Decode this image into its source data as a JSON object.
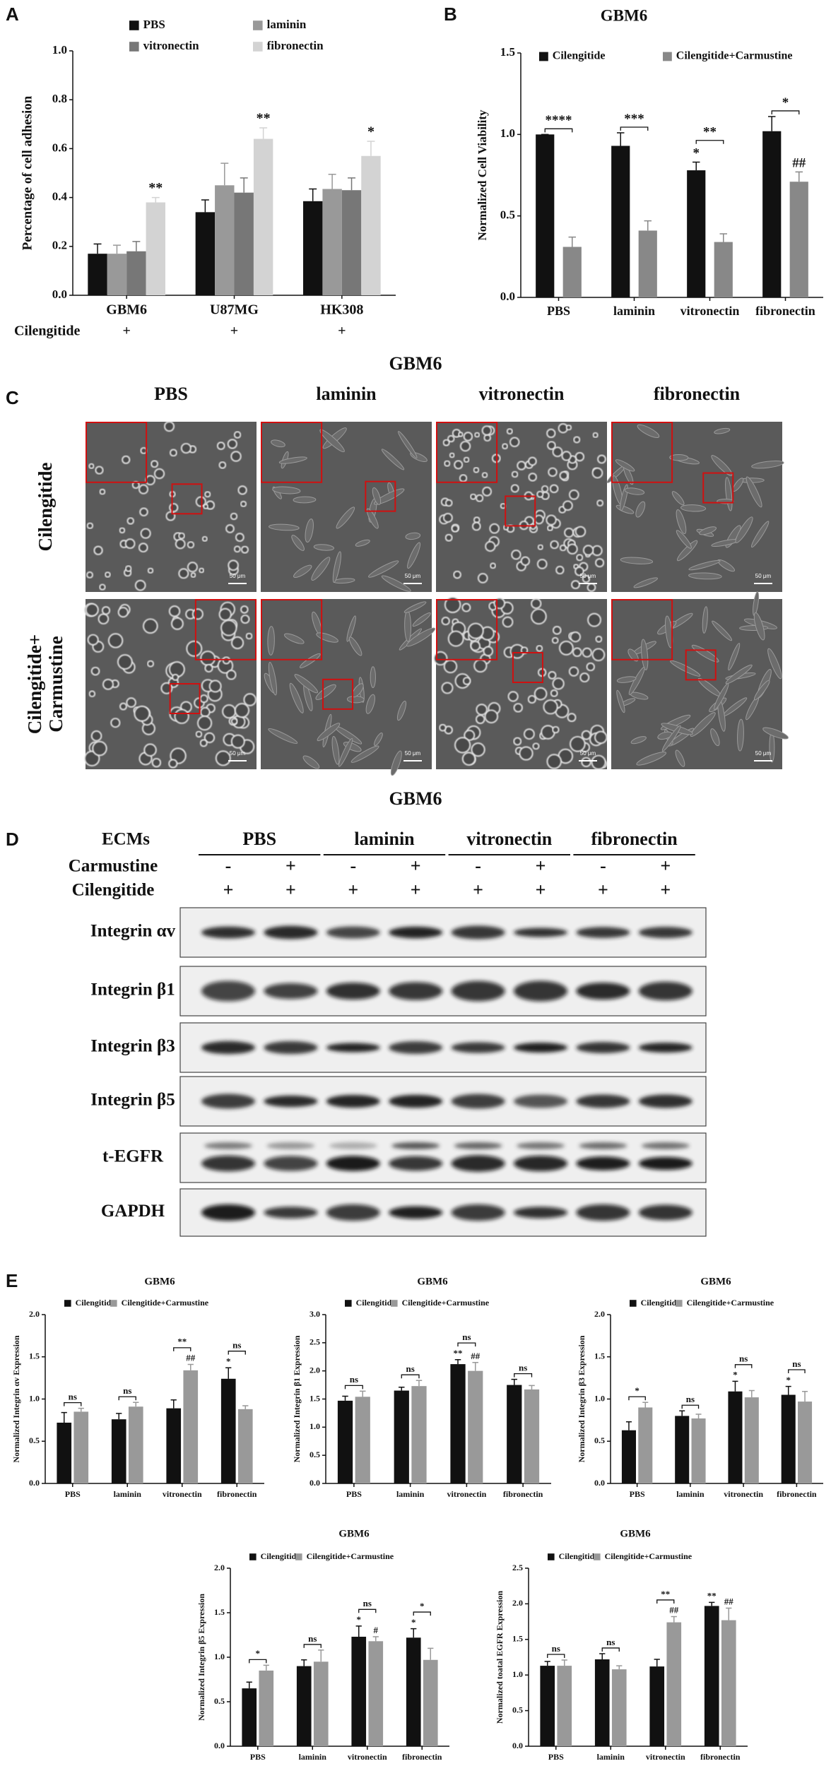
{
  "panel_labels": [
    "A",
    "B",
    "C",
    "D",
    "E"
  ],
  "chart_data": [
    {
      "type": "bar",
      "ylabel": "Percentage of cell adhesion",
      "categories": [
        "GBM6",
        "U87MG",
        "HK308"
      ],
      "series": [
        {
          "name": "PBS",
          "color": "#111111",
          "values": [
            0.17,
            0.34,
            0.385
          ],
          "errors": [
            0.04,
            0.05,
            0.05
          ]
        },
        {
          "name": "laminin",
          "color": "#999999",
          "values": [
            0.17,
            0.45,
            0.435
          ],
          "errors": [
            0.035,
            0.09,
            0.06
          ]
        },
        {
          "name": "vitronectin",
          "color": "#777777",
          "values": [
            0.18,
            0.42,
            0.43
          ],
          "errors": [
            0.04,
            0.06,
            0.05
          ]
        },
        {
          "name": "fibronectin",
          "color": "#d3d3d3",
          "values": [
            0.38,
            0.64,
            0.57
          ],
          "errors": [
            0.02,
            0.045,
            0.06
          ],
          "notes": [
            "**",
            "**",
            "*"
          ]
        }
      ],
      "ylim": [
        0,
        1
      ],
      "yticks": [
        {
          "value": 0,
          "label": "0.0"
        },
        0.2,
        0.4,
        0.6,
        0.8,
        {
          "value": 1,
          "label": "1.0"
        }
      ],
      "row_label": "Cilengitide",
      "row_values": [
        "+",
        "+",
        "+"
      ]
    },
    {
      "type": "bar",
      "title": "GBM6",
      "ylabel": "Normalized Cell Viability",
      "categories": [
        "PBS",
        "laminin",
        "vitronectin",
        "fibronectin"
      ],
      "series": [
        {
          "name": "Cilengitide",
          "color": "#111111",
          "values": [
            1.0,
            0.93,
            0.78,
            1.02
          ],
          "errors": [
            0,
            0.08,
            0.05,
            0.09
          ],
          "notes": [
            null,
            null,
            "*",
            null
          ]
        },
        {
          "name": "Cilengitide+Carmustine",
          "color": "#888888",
          "values": [
            0.31,
            0.41,
            0.34,
            0.71
          ],
          "errors": [
            0.06,
            0.06,
            0.05,
            0.06
          ],
          "notes": [
            null,
            null,
            null,
            "##"
          ]
        }
      ],
      "brackets": [
        "****",
        "***",
        "**",
        "*"
      ],
      "ylim": [
        0,
        1.5
      ],
      "yticks": [
        {
          "value": 0,
          "label": "0.0"
        },
        0.5,
        {
          "value": 1,
          "label": "1.0"
        },
        1.5
      ]
    },
    {
      "type": "bar",
      "title": "GBM6",
      "ylabel": "Normalized Integrin αv Expression",
      "categories": [
        "PBS",
        "laminin",
        "vitronectin",
        "fibronectin"
      ],
      "series": [
        {
          "name": "Cilengitide",
          "color": "#111111",
          "values": [
            0.72,
            0.76,
            0.89,
            1.24
          ],
          "errors": [
            0.12,
            0.07,
            0.1,
            0.13
          ],
          "notes": [
            null,
            null,
            null,
            "*"
          ]
        },
        {
          "name": "Cilengitide+Carmustine",
          "color": "#999999",
          "values": [
            0.85,
            0.91,
            1.34,
            0.88
          ],
          "errors": [
            0.04,
            0.05,
            0.07,
            0.04
          ],
          "notes": [
            null,
            null,
            "##",
            null
          ]
        }
      ],
      "brackets": [
        "ns",
        "ns",
        "**",
        "ns"
      ],
      "ylim": [
        0,
        2
      ],
      "yticks": [
        {
          "value": 0,
          "label": "0.0"
        },
        0.5,
        {
          "value": 1,
          "label": "1.0"
        },
        1.5,
        {
          "value": 2,
          "label": "2.0"
        }
      ]
    },
    {
      "type": "bar",
      "title": "GBM6",
      "ylabel": "Normalized Integrin β1 Expression",
      "categories": [
        "PBS",
        "laminin",
        "vitronectin",
        "fibronectin"
      ],
      "series": [
        {
          "name": "Cilengitide",
          "color": "#111111",
          "values": [
            1.47,
            1.65,
            2.12,
            1.75
          ],
          "errors": [
            0.08,
            0.06,
            0.08,
            0.1
          ],
          "notes": [
            null,
            null,
            "**",
            null
          ]
        },
        {
          "name": "Cilengitide+Carmustine",
          "color": "#999999",
          "values": [
            1.54,
            1.73,
            2.0,
            1.67
          ],
          "errors": [
            0.1,
            0.1,
            0.15,
            0.07
          ],
          "notes": [
            null,
            null,
            "##",
            null
          ]
        }
      ],
      "brackets": [
        "ns",
        "ns",
        "ns",
        "ns"
      ],
      "ylim": [
        0,
        3
      ],
      "yticks": [
        {
          "value": 0,
          "label": "0.0"
        },
        0.5,
        {
          "value": 1,
          "label": "1.0"
        },
        1.5,
        {
          "value": 2,
          "label": "2.0"
        },
        2.5,
        {
          "value": 3,
          "label": "3.0"
        }
      ]
    },
    {
      "type": "bar",
      "title": "GBM6",
      "ylabel": "Normalized Integrin β3 Expression",
      "categories": [
        "PBS",
        "laminin",
        "vitronectin",
        "fibronectin"
      ],
      "series": [
        {
          "name": "Cilengitide",
          "color": "#111111",
          "values": [
            0.63,
            0.8,
            1.09,
            1.05
          ],
          "errors": [
            0.1,
            0.06,
            0.12,
            0.1
          ],
          "notes": [
            null,
            null,
            "*",
            "*"
          ]
        },
        {
          "name": "Cilengitide+Carmustine",
          "color": "#999999",
          "values": [
            0.9,
            0.77,
            1.02,
            0.97
          ],
          "errors": [
            0.06,
            0.05,
            0.08,
            0.12
          ]
        }
      ],
      "brackets": [
        "*",
        "ns",
        "ns",
        "ns"
      ],
      "ylim": [
        0,
        2
      ],
      "yticks": [
        {
          "value": 0,
          "label": "0.0"
        },
        0.5,
        {
          "value": 1,
          "label": "1.0"
        },
        1.5,
        {
          "value": 2,
          "label": "2.0"
        }
      ]
    },
    {
      "type": "bar",
      "title": "GBM6",
      "ylabel": "Normalized Integrin β5 Expression",
      "categories": [
        "PBS",
        "laminin",
        "vitronectin",
        "fibronectin"
      ],
      "series": [
        {
          "name": "Cilengitide",
          "color": "#111111",
          "values": [
            0.65,
            0.9,
            1.23,
            1.22
          ],
          "errors": [
            0.07,
            0.07,
            0.12,
            0.1
          ],
          "notes": [
            null,
            null,
            "*",
            "*"
          ]
        },
        {
          "name": "Cilengitide+Carmustine",
          "color": "#999999",
          "values": [
            0.85,
            0.95,
            1.18,
            0.97
          ],
          "errors": [
            0.06,
            0.13,
            0.05,
            0.13
          ],
          "notes": [
            null,
            null,
            "#",
            null
          ]
        }
      ],
      "brackets": [
        "*",
        "ns",
        "ns",
        "*"
      ],
      "ylim": [
        0,
        2
      ],
      "yticks": [
        {
          "value": 0,
          "label": "0.0"
        },
        0.5,
        {
          "value": 1,
          "label": "1.0"
        },
        1.5,
        {
          "value": 2,
          "label": "2.0"
        }
      ]
    },
    {
      "type": "bar",
      "title": "GBM6",
      "ylabel": "Normalized toatal EGFR Expression",
      "categories": [
        "PBS",
        "laminin",
        "vitronectin",
        "fibronectin"
      ],
      "series": [
        {
          "name": "Cilengitide",
          "color": "#111111",
          "values": [
            1.13,
            1.22,
            1.12,
            1.97
          ],
          "errors": [
            0.06,
            0.08,
            0.1,
            0.05
          ],
          "notes": [
            null,
            null,
            null,
            "**"
          ]
        },
        {
          "name": "Cilengitide+Carmustine",
          "color": "#999999",
          "values": [
            1.13,
            1.08,
            1.74,
            1.77
          ],
          "errors": [
            0.08,
            0.05,
            0.08,
            0.17
          ],
          "notes": [
            null,
            null,
            "##",
            "##"
          ]
        }
      ],
      "brackets": [
        "ns",
        "ns",
        "**",
        null
      ],
      "ylim": [
        0,
        2.5
      ],
      "yticks": [
        {
          "value": 0,
          "label": "0.0"
        },
        0.5,
        {
          "value": 1,
          "label": "1.0"
        },
        1.5,
        {
          "value": 2,
          "label": "2.0"
        },
        2.5
      ]
    }
  ],
  "panel_c": {
    "title": "GBM6",
    "columns": [
      "PBS",
      "laminin",
      "vitronectin",
      "fibronectin"
    ],
    "row_labels": [
      [
        "Cilengitide"
      ],
      [
        "Cilengitide+",
        "Carmustine"
      ]
    ],
    "scale_bar": "50 μm"
  },
  "panel_d": {
    "title": "GBM6",
    "ecm_label": "ECMs",
    "groups": [
      "PBS",
      "laminin",
      "vitronectin",
      "fibronectin"
    ],
    "carmustine_label": "Carmustine",
    "carmustine": [
      "-",
      "+",
      "-",
      "+",
      "-",
      "+",
      "-",
      "+"
    ],
    "cilengitide_label": "Cilengitide",
    "cilengitide": [
      "+",
      "+",
      "+",
      "+",
      "+",
      "+",
      "+",
      "+"
    ],
    "blots": [
      "Integrin αv",
      "Integrin β1",
      "Integrin β3",
      "Integrin β5",
      "t-EGFR",
      "GAPDH"
    ]
  }
}
